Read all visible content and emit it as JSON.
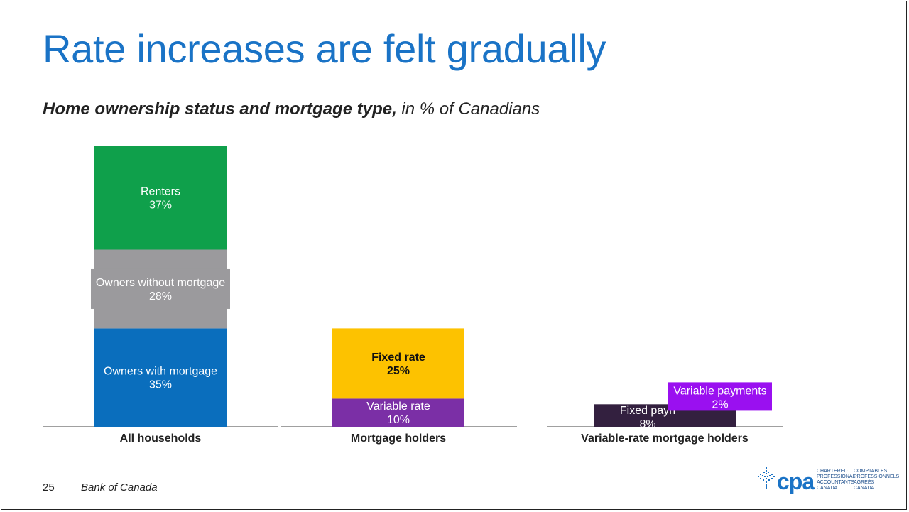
{
  "slide": {
    "title": "Rate increases are felt gradually",
    "subtitle_bold": "Home ownership status and mortgage type,",
    "subtitle_rest": " in % of Canadians",
    "page_number": "25",
    "source": "Bank of Canada"
  },
  "logo": {
    "icon": "maple-leaf-icon",
    "wordmark": "cpa",
    "english_lines": [
      "CHARTERED",
      "PROFESSIONAL",
      "ACCOUNTANTS",
      "CANADA"
    ],
    "french_lines": [
      "COMPTABLES",
      "PROFESSIONNELS",
      "AGRÉÉS",
      "CANADA"
    ]
  },
  "chart_data": {
    "type": "bar",
    "stacked": true,
    "unit": "%",
    "categories": [
      "All households",
      "Mortgage holders",
      "Variable-rate mortgage holders"
    ],
    "series": [
      {
        "name": "Owners with mortgage",
        "category": "All households",
        "value": 35,
        "label": "Owners with mortgage",
        "color": "#0a6ebd"
      },
      {
        "name": "Owners without mortgage",
        "category": "All households",
        "value": 28,
        "label": "Owners without mortgage",
        "color": "#9b9a9d"
      },
      {
        "name": "Renters",
        "category": "All households",
        "value": 37,
        "label": "Renters",
        "color": "#0fa04b"
      },
      {
        "name": "Variable rate",
        "category": "Mortgage holders",
        "value": 10,
        "label": "Variable rate",
        "color": "#7b2fa6"
      },
      {
        "name": "Fixed rate",
        "category": "Mortgage holders",
        "value": 25,
        "label": "Fixed rate",
        "color": "#fdc200"
      },
      {
        "name": "Fixed payments",
        "category": "Variable-rate mortgage holders",
        "value": 8,
        "label": "Fixed payn",
        "color": "#33203f"
      },
      {
        "name": "Variable payments",
        "category": "Variable-rate mortgage holders",
        "value": 2,
        "label": "Variable payments",
        "color": "#9a10f0"
      }
    ],
    "ylim": [
      0,
      100
    ],
    "xlabel": "",
    "ylabel": "",
    "legend": "none"
  }
}
